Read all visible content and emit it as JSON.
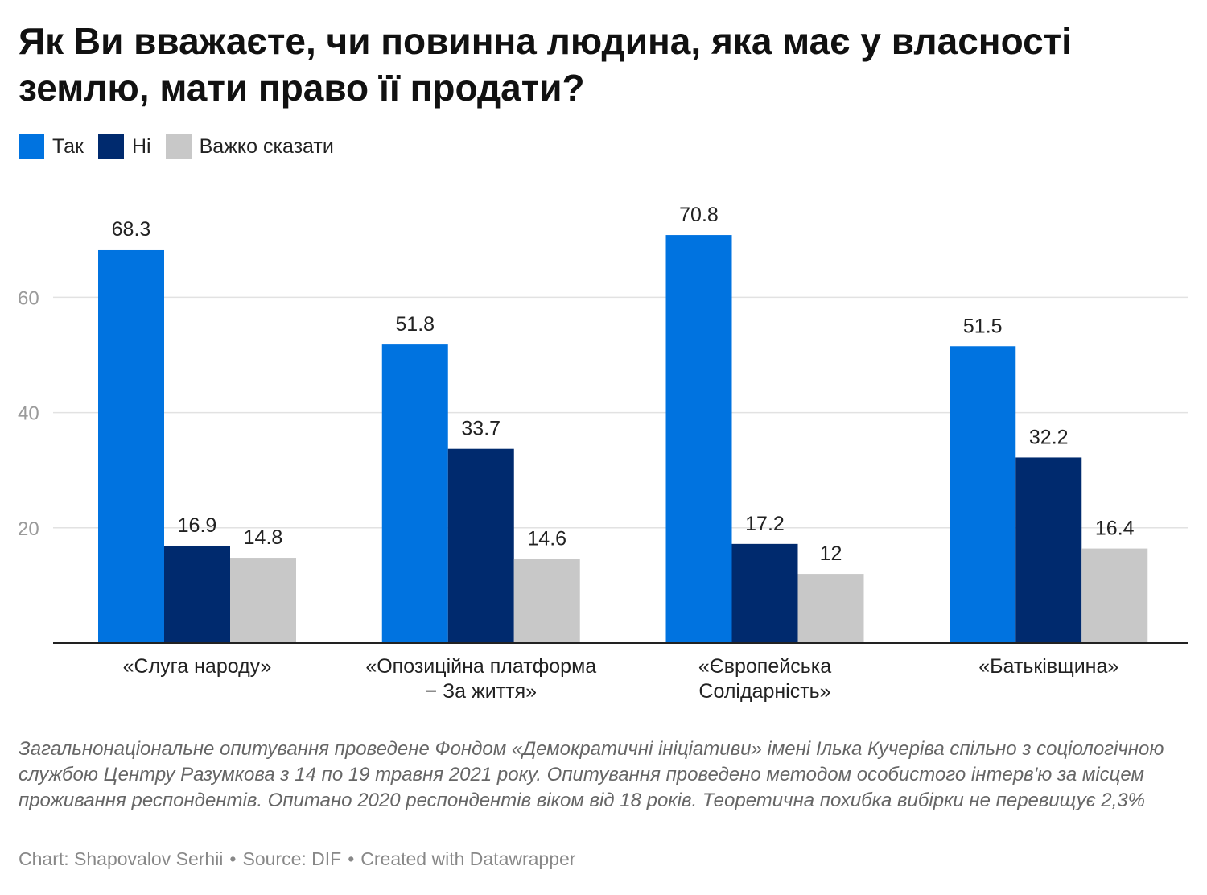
{
  "title": "Як Ви вважаєте, чи повинна людина, яка має у власності землю, мати право її продати?",
  "notes": "Загальнонаціональне опитування проведене Фондом «Демократичні ініціативи» імені Ілька Кучеріва спільно з соціологічною службою Центру Разумкова з 14 по 19 травня 2021 року. Опитування проведено методом особистого інтерв'ю за місцем проживання респондентів. Опитано 2020 респондентів віком від 18 років. Теоретична похибка вибірки не перевищує 2,3%",
  "credits": {
    "chart": "Chart: Shapovalov Serhii",
    "source": "Source: DIF",
    "created": "Created with Datawrapper",
    "separator": "•"
  },
  "chart_data": {
    "type": "bar",
    "title": "Як Ви вважаєте, чи повинна людина, яка має у власності землю, мати право її продати?",
    "categories": [
      [
        "«Слуга народу»"
      ],
      [
        "«Опозиційна платформа",
        "− За життя»"
      ],
      [
        "«Європейська",
        "Солідарність»"
      ],
      [
        "«Батьківщина»"
      ]
    ],
    "series": [
      {
        "name": "Так",
        "color": "#0073e0",
        "values": [
          68.3,
          51.8,
          70.8,
          51.5
        ],
        "labels": [
          "68.3",
          "51.8",
          "70.8",
          "51.5"
        ]
      },
      {
        "name": "Ні",
        "color": "#002a6e",
        "values": [
          16.9,
          33.7,
          17.2,
          32.2
        ],
        "labels": [
          "16.9",
          "33.7",
          "17.2",
          "32.2"
        ]
      },
      {
        "name": "Важко сказати",
        "color": "#c8c8c8",
        "values": [
          14.8,
          14.6,
          12,
          16.4
        ],
        "labels": [
          "14.8",
          "14.6",
          "12",
          "16.4"
        ]
      }
    ],
    "yticks": [
      20,
      40,
      60
    ],
    "ytick_labels": [
      "20",
      "40",
      "60"
    ],
    "ylim": [
      0,
      80
    ],
    "xlabel": "",
    "ylabel": "",
    "grid": true,
    "legend": "top-left"
  }
}
